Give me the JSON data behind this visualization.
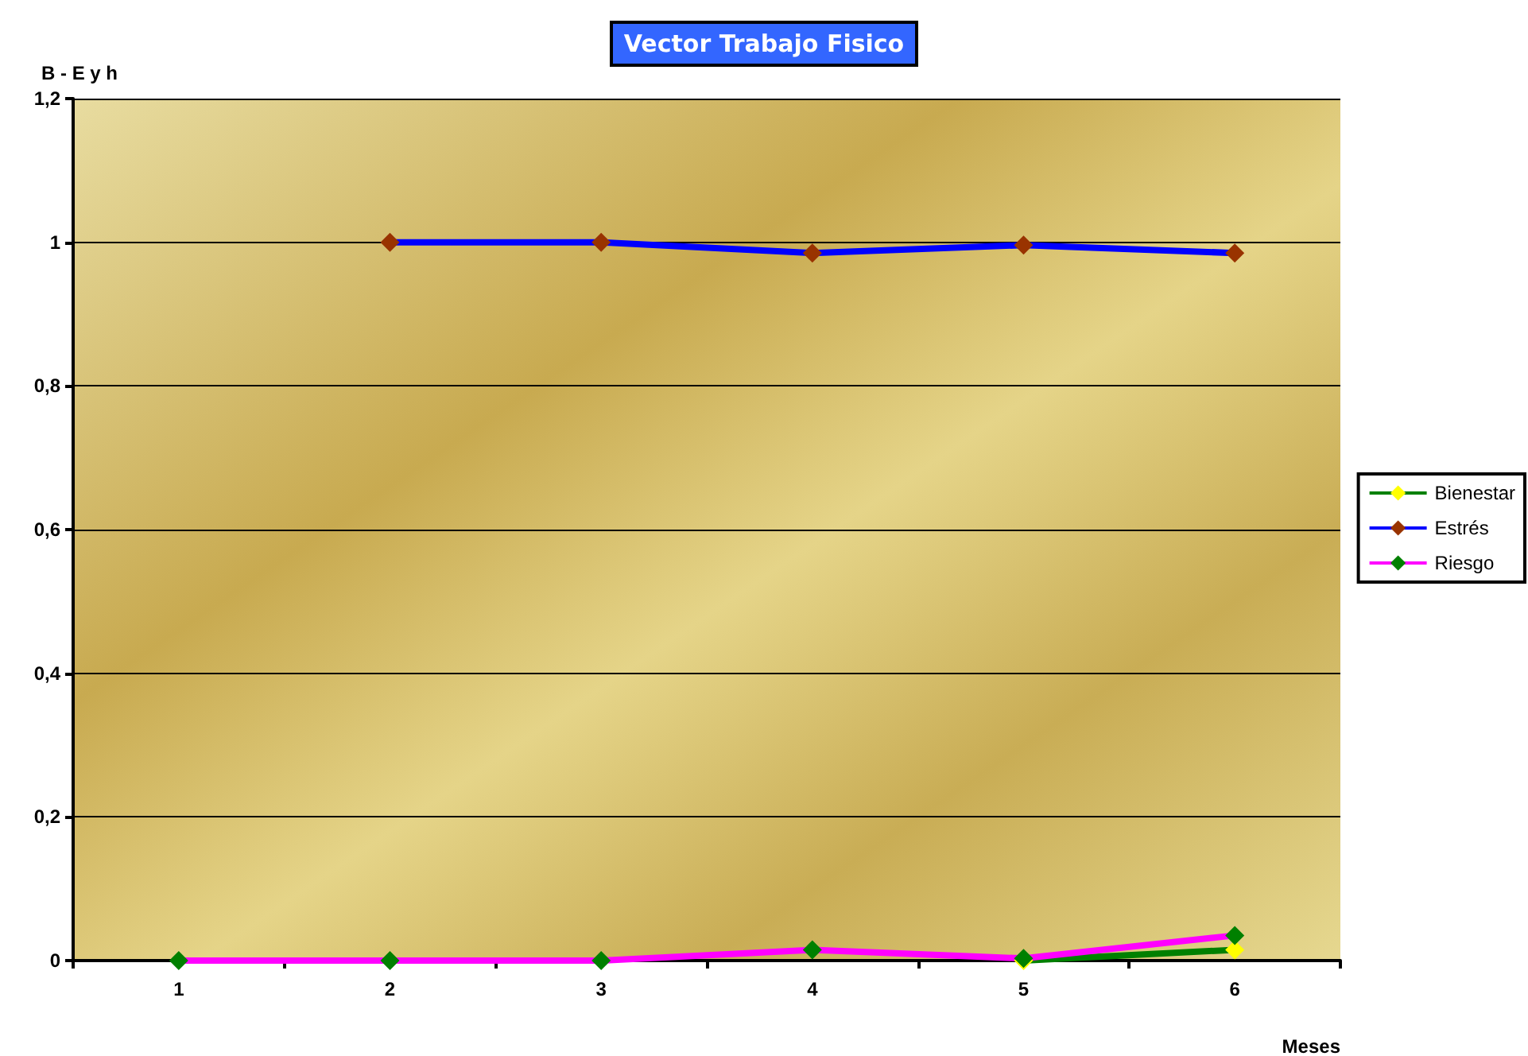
{
  "chart_data": {
    "type": "line",
    "title": "Vector Trabajo Fisico",
    "xlabel": "Meses",
    "ylabel": "B - E y h",
    "categories": [
      "1",
      "2",
      "3",
      "4",
      "5",
      "6"
    ],
    "series": [
      {
        "name": "Bienestar",
        "color": "#008000",
        "colors": [
          "#ffff00",
          "#ffff00",
          "#ffff00",
          "#ffff00",
          "#ffff00",
          "#ffff00"
        ],
        "values": [
          null,
          null,
          null,
          null,
          0,
          0.015
        ]
      },
      {
        "name": "Estrés",
        "color": "#0000ff",
        "colors": [
          "#993300",
          "#993300",
          "#993300",
          "#993300",
          "#993300",
          "#993300"
        ],
        "values": [
          null,
          1,
          1,
          0.985,
          0.996,
          0.985
        ]
      },
      {
        "name": "Riesgo",
        "color": "#ff00ff",
        "colors": [
          "#008000",
          "#008000",
          "#008000",
          "#008000",
          "#008000",
          "#008000"
        ],
        "values": [
          0,
          0,
          0,
          0.015,
          0.003,
          0.035
        ]
      }
    ],
    "ylim": [
      0,
      1.2
    ],
    "yticks": [
      0,
      {
        "value": 0.2,
        "label": "0,2"
      },
      {
        "value": 0.4,
        "label": "0,4"
      },
      {
        "value": 0.6,
        "label": "0,6"
      },
      {
        "value": 0.8,
        "label": "0,8"
      },
      1,
      {
        "value": 1.2,
        "label": "1,2"
      }
    ],
    "grid": "y",
    "legend": "right",
    "marker": "diamond",
    "line_style": "solid"
  }
}
